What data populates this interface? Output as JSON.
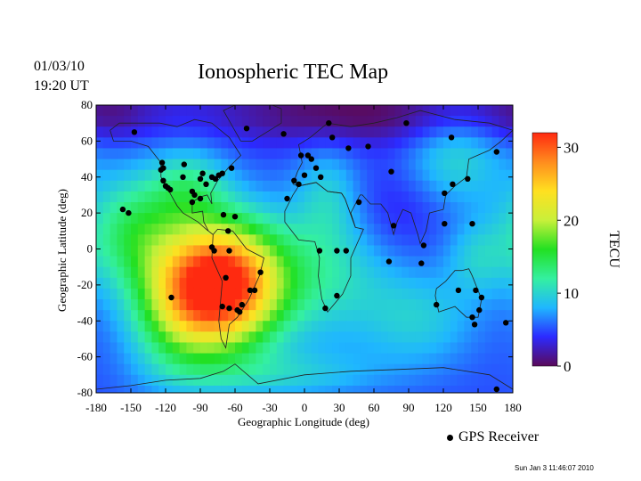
{
  "header": {
    "date": "01/03/10",
    "time": "19:20 UT",
    "title": "Ionospheric TEC Map"
  },
  "footer": {
    "timestamp": "Sun Jan  3 11:46:07 2010",
    "legend_label": "GPS Receiver"
  },
  "chart_data": {
    "type": "heatmap",
    "title": "Ionospheric TEC Map",
    "xlabel": "Geographic Longitude (deg)",
    "ylabel": "Geographic Latitude (deg)",
    "xlim": [
      -180,
      180
    ],
    "ylim": [
      -80,
      80
    ],
    "x_ticks": [
      -180,
      -150,
      -120,
      -90,
      -60,
      -30,
      0,
      30,
      60,
      90,
      120,
      150,
      180
    ],
    "y_ticks": [
      80,
      60,
      40,
      20,
      0,
      -20,
      -40,
      -60,
      -80
    ],
    "colorbar": {
      "label": "TECU",
      "range": [
        0,
        32
      ],
      "ticks": [
        0,
        10,
        20,
        30
      ],
      "colors": [
        "#5a0a5a",
        "#2c2aff",
        "#1fb6ff",
        "#34f0a0",
        "#22e022",
        "#c8f03a",
        "#ffe020",
        "#ff8c1e",
        "#ff2a10"
      ]
    },
    "field": {
      "background_tecu": 5,
      "blobs": [
        {
          "lon": -70,
          "lat": -20,
          "slon": 34,
          "slat": 24,
          "amp": 26
        },
        {
          "lon": -110,
          "lat": -30,
          "slon": 30,
          "slat": 28,
          "amp": 10
        },
        {
          "lon": -150,
          "lat": 10,
          "slon": 30,
          "slat": 22,
          "amp": 8
        },
        {
          "lon": -100,
          "lat": 35,
          "slon": 25,
          "slat": 15,
          "amp": 6
        },
        {
          "lon": 10,
          "lat": -15,
          "slon": 50,
          "slat": 25,
          "amp": 6
        },
        {
          "lon": 20,
          "lat": 30,
          "slon": 20,
          "slat": 20,
          "amp": 4
        },
        {
          "lon": 130,
          "lat": 50,
          "slon": 30,
          "slat": 18,
          "amp": 5
        },
        {
          "lon": 100,
          "lat": -40,
          "slon": 35,
          "slat": 18,
          "amp": 4
        },
        {
          "lon": 150,
          "lat": -5,
          "slon": 20,
          "slat": 15,
          "amp": 4
        },
        {
          "lon": -20,
          "lat": -70,
          "slon": 60,
          "slat": 10,
          "amp": 4
        }
      ],
      "lows": [
        {
          "lon": 40,
          "lat": 75,
          "slon": 90,
          "slat": 12,
          "amp": -5
        },
        {
          "lon": -165,
          "lat": 75,
          "slon": 30,
          "slat": 10,
          "amp": -3
        },
        {
          "lon": 80,
          "lat": 20,
          "slon": 30,
          "slat": 20,
          "amp": -2
        }
      ]
    },
    "receivers": [
      [
        -147,
        65
      ],
      [
        -123,
        48
      ],
      [
        -124,
        44
      ],
      [
        -122,
        38
      ],
      [
        -120,
        35
      ],
      [
        -118,
        34
      ],
      [
        -116,
        33
      ],
      [
        -122,
        45
      ],
      [
        -105,
        40
      ],
      [
        -97,
        32
      ],
      [
        -90,
        39
      ],
      [
        -88,
        42
      ],
      [
        -80,
        40
      ],
      [
        -77,
        39
      ],
      [
        -74,
        41
      ],
      [
        -71,
        42
      ],
      [
        -63,
        45
      ],
      [
        -95,
        30
      ],
      [
        -97,
        26
      ],
      [
        -90,
        28
      ],
      [
        -104,
        47
      ],
      [
        -85,
        36
      ],
      [
        -157,
        22
      ],
      [
        -152,
        20
      ],
      [
        -70,
        19
      ],
      [
        -60,
        18
      ],
      [
        -80,
        1
      ],
      [
        -78,
        -1
      ],
      [
        -66,
        10
      ],
      [
        -65,
        -1
      ],
      [
        -68,
        -16
      ],
      [
        -71,
        -32
      ],
      [
        -65,
        -33
      ],
      [
        -58,
        -34
      ],
      [
        -56,
        -35
      ],
      [
        -54,
        -31
      ],
      [
        -47,
        -23
      ],
      [
        -43,
        -23
      ],
      [
        -38,
        -13
      ],
      [
        -115,
        -27
      ],
      [
        -50,
        67
      ],
      [
        -18,
        64
      ],
      [
        -5,
        36
      ],
      [
        3,
        52
      ],
      [
        6,
        50
      ],
      [
        10,
        45
      ],
      [
        14,
        40
      ],
      [
        -9,
        38
      ],
      [
        21,
        70
      ],
      [
        24,
        62
      ],
      [
        38,
        56
      ],
      [
        55,
        57
      ],
      [
        -3,
        52
      ],
      [
        0,
        41
      ],
      [
        -15,
        28
      ],
      [
        13,
        -1
      ],
      [
        28,
        -1
      ],
      [
        36,
        -1
      ],
      [
        18,
        -33
      ],
      [
        28,
        -26
      ],
      [
        47,
        26
      ],
      [
        75,
        43
      ],
      [
        88,
        70
      ],
      [
        127,
        62
      ],
      [
        166,
        54
      ],
      [
        77,
        13
      ],
      [
        73,
        -7
      ],
      [
        103,
        2
      ],
      [
        101,
        -8
      ],
      [
        114,
        -31
      ],
      [
        133,
        -23
      ],
      [
        121,
        14
      ],
      [
        121,
        31
      ],
      [
        128,
        36
      ],
      [
        141,
        39
      ],
      [
        145,
        14
      ],
      [
        148,
        -23
      ],
      [
        151,
        -34
      ],
      [
        145,
        -38
      ],
      [
        153,
        -27
      ],
      [
        174,
        -41
      ],
      [
        147,
        -42
      ],
      [
        166,
        -78
      ]
    ]
  }
}
